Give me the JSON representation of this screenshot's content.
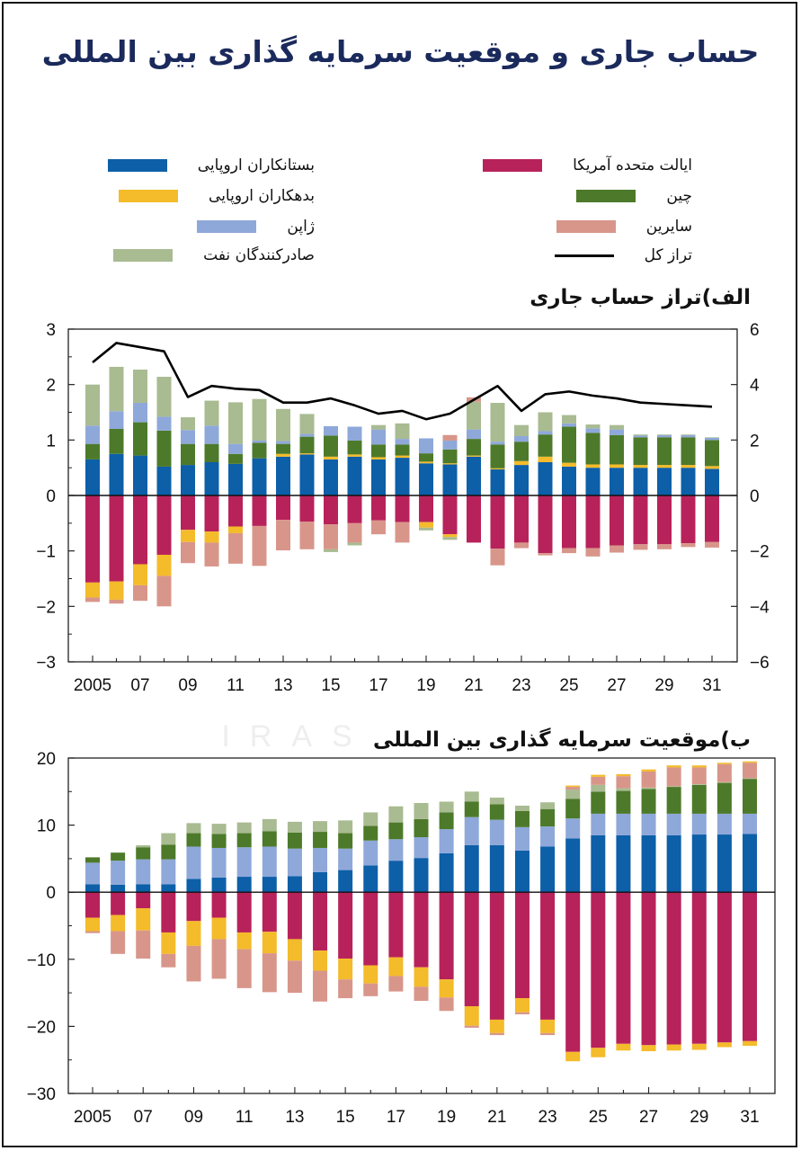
{
  "title": "حساب جاری و موقعیت سرمایه گذاری بین المللی",
  "legend": [
    {
      "key": "eu_creditors",
      "label": "بستانکاران اروپایی",
      "color": "#0d5fa8"
    },
    {
      "key": "eu_debtors",
      "label": "بدهکاران اروپایی",
      "color": "#f4bb2a"
    },
    {
      "key": "japan",
      "label": "ژاپن",
      "color": "#8fa8da"
    },
    {
      "key": "oil",
      "label": "صادرکنندگان نفت",
      "color": "#a9bb91"
    },
    {
      "key": "us",
      "label": "ایالت متحده آمریکا",
      "color": "#b8225a"
    },
    {
      "key": "china",
      "label": "چین",
      "color": "#4d7a2a"
    },
    {
      "key": "others",
      "label": "سایرین",
      "color": "#d8968a"
    },
    {
      "key": "total",
      "label": "تراز کل",
      "color": "#000000"
    }
  ],
  "watermark": "IRAS",
  "chart_data": [
    {
      "type": "bar",
      "title": "الف)تراز حساب جاری",
      "x": [
        2005,
        2006,
        2007,
        2008,
        2009,
        2010,
        2011,
        2012,
        2013,
        2014,
        2015,
        2016,
        2017,
        2018,
        2019,
        2020,
        2021,
        2022,
        2023,
        2024,
        2025,
        2026,
        2027,
        2028,
        2029,
        2030,
        2031
      ],
      "tick_labels": [
        "2005",
        "07",
        "09",
        "11",
        "13",
        "15",
        "17",
        "19",
        "21",
        "23",
        "25",
        "27",
        "29",
        "31"
      ],
      "left_axis": {
        "ylim": [
          -3,
          3
        ],
        "ticks": [
          "−3",
          "−2",
          "−1",
          "0",
          "1",
          "2",
          "3"
        ]
      },
      "right_axis": {
        "ylim": [
          -6,
          6
        ],
        "ticks": [
          "−6",
          "−4",
          "−2",
          "0",
          "2",
          "4",
          "6"
        ]
      },
      "series": [
        {
          "key": "eu_creditors",
          "values": [
            0.65,
            0.75,
            0.72,
            0.52,
            0.55,
            0.6,
            0.57,
            0.67,
            0.7,
            0.74,
            0.65,
            0.7,
            0.65,
            0.68,
            0.58,
            0.56,
            0.7,
            0.47,
            0.55,
            0.6,
            0.52,
            0.5,
            0.5,
            0.5,
            0.5,
            0.5,
            0.48
          ]
        },
        {
          "key": "eu_debtors",
          "values": [
            0,
            0,
            0,
            0,
            0,
            0,
            0,
            0,
            0.05,
            0.02,
            0.05,
            0.04,
            0.04,
            0.04,
            0.03,
            0.02,
            0.02,
            0.02,
            0.07,
            0.1,
            0.07,
            0.06,
            0.06,
            0.05,
            0.05,
            0.05,
            0.05
          ]
        },
        {
          "key": "china",
          "values": [
            0.28,
            0.45,
            0.6,
            0.65,
            0.38,
            0.33,
            0.18,
            0.28,
            0.18,
            0.3,
            0.38,
            0.25,
            0.23,
            0.2,
            0.15,
            0.25,
            0.3,
            0.43,
            0.35,
            0.4,
            0.65,
            0.57,
            0.53,
            0.5,
            0.5,
            0.5,
            0.47
          ]
        },
        {
          "key": "japan",
          "values": [
            0.33,
            0.32,
            0.35,
            0.25,
            0.25,
            0.33,
            0.18,
            0.04,
            0.05,
            0.05,
            0.17,
            0.25,
            0.27,
            0.1,
            0.27,
            0.16,
            0.17,
            0.05,
            0.1,
            0.06,
            0.06,
            0.08,
            0.1,
            0.03,
            0.04,
            0.04,
            0.04
          ]
        },
        {
          "key": "oil",
          "values": [
            0.74,
            0.8,
            0.6,
            0.72,
            0.23,
            0.45,
            0.75,
            0.75,
            0.58,
            0.36,
            0,
            0,
            0.08,
            0.28,
            0,
            0,
            0.5,
            0.7,
            0.2,
            0.34,
            0.15,
            0.07,
            0.08,
            0.02,
            0.01,
            0.01,
            0.01
          ]
        },
        {
          "key": "others",
          "values": [
            0,
            0,
            0,
            0,
            0,
            0,
            0,
            0,
            0,
            0,
            0,
            0,
            0,
            0,
            0,
            0.1,
            0.08,
            0,
            0,
            0,
            0,
            0,
            0,
            0,
            0,
            0,
            0
          ]
        }
      ],
      "series_negative": [
        {
          "key": "us",
          "values": [
            -1.57,
            -1.55,
            -1.24,
            -1.07,
            -0.62,
            -0.65,
            -0.56,
            -0.55,
            -0.44,
            -0.47,
            -0.52,
            -0.5,
            -0.45,
            -0.48,
            -0.48,
            -0.7,
            -0.85,
            -0.96,
            -0.85,
            -1.04,
            -0.95,
            -0.95,
            -0.9,
            -0.88,
            -0.88,
            -0.86,
            -0.84
          ]
        },
        {
          "key": "eu_debtors",
          "values": [
            -0.27,
            -0.33,
            -0.38,
            -0.38,
            -0.22,
            -0.2,
            -0.12,
            0,
            0,
            0,
            0,
            0,
            0,
            0,
            -0.1,
            -0.05,
            0,
            0,
            0,
            0,
            0,
            0,
            0,
            0,
            0,
            0,
            0
          ]
        },
        {
          "key": "others",
          "values": [
            -0.08,
            -0.07,
            -0.28,
            -0.55,
            -0.38,
            -0.43,
            -0.55,
            -0.72,
            -0.55,
            -0.5,
            -0.45,
            -0.35,
            -0.25,
            -0.37,
            0,
            0,
            0,
            -0.3,
            -0.1,
            -0.04,
            -0.09,
            -0.15,
            -0.13,
            -0.1,
            -0.09,
            -0.07,
            -0.1
          ]
        },
        {
          "key": "oil",
          "values": [
            0,
            0,
            0,
            0,
            0,
            0,
            0,
            0,
            0,
            0,
            -0.05,
            -0.05,
            0,
            0,
            -0.05,
            -0.05,
            0,
            0,
            0,
            0,
            0,
            0,
            0,
            0,
            0,
            0,
            0
          ]
        }
      ],
      "line": {
        "key": "total",
        "axis": "right",
        "values": [
          4.8,
          5.5,
          5.35,
          5.2,
          3.55,
          3.95,
          3.85,
          3.8,
          3.35,
          3.35,
          3.5,
          3.25,
          2.95,
          3.05,
          2.75,
          2.95,
          3.45,
          3.95,
          3.05,
          3.65,
          3.75,
          3.6,
          3.5,
          3.35,
          3.3,
          3.25,
          3.2
        ]
      }
    },
    {
      "type": "bar",
      "title": "ب)موقعیت سرمایه گذاری بین المللی",
      "x": [
        2005,
        2006,
        2007,
        2008,
        2009,
        2010,
        2011,
        2012,
        2013,
        2014,
        2015,
        2016,
        2017,
        2018,
        2019,
        2020,
        2021,
        2022,
        2023,
        2024,
        2025,
        2026,
        2027,
        2028,
        2029,
        2030,
        2031
      ],
      "tick_labels": [
        "2005",
        "07",
        "09",
        "11",
        "13",
        "15",
        "17",
        "19",
        "21",
        "23",
        "25",
        "27",
        "29",
        "31"
      ],
      "left_axis": {
        "ylim": [
          -30,
          20
        ],
        "ticks": [
          "−30",
          "−20",
          "−10",
          "0",
          "10",
          "20"
        ]
      },
      "series": [
        {
          "key": "eu_creditors",
          "values": [
            1.2,
            1.1,
            1.2,
            1.2,
            2,
            2.2,
            2.3,
            2.3,
            2.4,
            3,
            3.3,
            4,
            4.7,
            5.1,
            5.8,
            7,
            7,
            6.2,
            6.8,
            8,
            8.5,
            8.5,
            8.5,
            8.5,
            8.6,
            8.6,
            8.7
          ]
        },
        {
          "key": "japan",
          "values": [
            3.2,
            3.6,
            3.7,
            3.7,
            4.8,
            4.4,
            4.4,
            4.5,
            4.1,
            3.6,
            3.2,
            3.7,
            3.2,
            3.1,
            3.6,
            4.2,
            3.8,
            3.5,
            3,
            3,
            3.2,
            3.2,
            3.2,
            3.2,
            3.1,
            3.1,
            3
          ]
        },
        {
          "key": "china",
          "values": [
            0.8,
            1.2,
            1.8,
            2.2,
            2,
            2.1,
            2.1,
            2.3,
            2.4,
            2.4,
            2.3,
            2.2,
            2.5,
            2.7,
            2.5,
            2.3,
            2.3,
            2.4,
            2.6,
            2.9,
            3.3,
            3.4,
            3.7,
            4,
            4.3,
            4.6,
            5.2
          ]
        },
        {
          "key": "oil",
          "values": [
            0,
            0,
            0.3,
            1.7,
            1.5,
            1.5,
            1.6,
            1.8,
            1.6,
            1.6,
            1.9,
            2,
            2.4,
            2.4,
            1.6,
            1.5,
            1,
            0.8,
            1,
            1.4,
            1,
            0.4,
            0.2,
            0.1,
            0.1,
            0.1,
            0.1
          ]
        },
        {
          "key": "others",
          "values": [
            0,
            0,
            0,
            0,
            0,
            0,
            0,
            0,
            0,
            0,
            0,
            0,
            0,
            0,
            0,
            0,
            0,
            0,
            0,
            0.4,
            1.2,
            1.8,
            2.4,
            2.8,
            2.5,
            2.7,
            2.3
          ]
        },
        {
          "key": "eu_debtors",
          "values": [
            0,
            0,
            0,
            0,
            0,
            0,
            0,
            0,
            0,
            0,
            0,
            0,
            0,
            0,
            0,
            0,
            0,
            0,
            0,
            0.2,
            0.3,
            0.3,
            0.3,
            0.3,
            0.3,
            0.2,
            0.2
          ]
        }
      ],
      "series_negative": [
        {
          "key": "us",
          "values": [
            -3.8,
            -3.4,
            -2.4,
            -6,
            -4.3,
            -3.8,
            -6,
            -5.9,
            -7,
            -8.7,
            -9.9,
            -10.9,
            -9.7,
            -11.2,
            -13,
            -17,
            -19,
            -15.8,
            -19,
            -23.8,
            -23.2,
            -22.6,
            -22.8,
            -22.7,
            -22.6,
            -22.4,
            -22.2
          ]
        },
        {
          "key": "eu_debtors",
          "values": [
            -2,
            -2.4,
            -3.3,
            -3.2,
            -3.7,
            -3.2,
            -2.5,
            -3.2,
            -3.2,
            -3,
            -3.1,
            -2.7,
            -2.8,
            -2.9,
            -2.7,
            -2.9,
            -2,
            -2.1,
            -2,
            -1.4,
            -1.4,
            -1,
            -0.9,
            -0.9,
            -0.9,
            -0.7,
            -0.7
          ]
        },
        {
          "key": "others",
          "values": [
            -0.3,
            -3.4,
            -4.2,
            -2,
            -5.3,
            -5.9,
            -5.8,
            -5.8,
            -4.8,
            -4.6,
            -2.8,
            -1.9,
            -2.3,
            -2.1,
            -2,
            -0.3,
            -0.3,
            -0.3,
            -0.3,
            0,
            0,
            0,
            0,
            0,
            0,
            0,
            0
          ]
        }
      ]
    }
  ]
}
